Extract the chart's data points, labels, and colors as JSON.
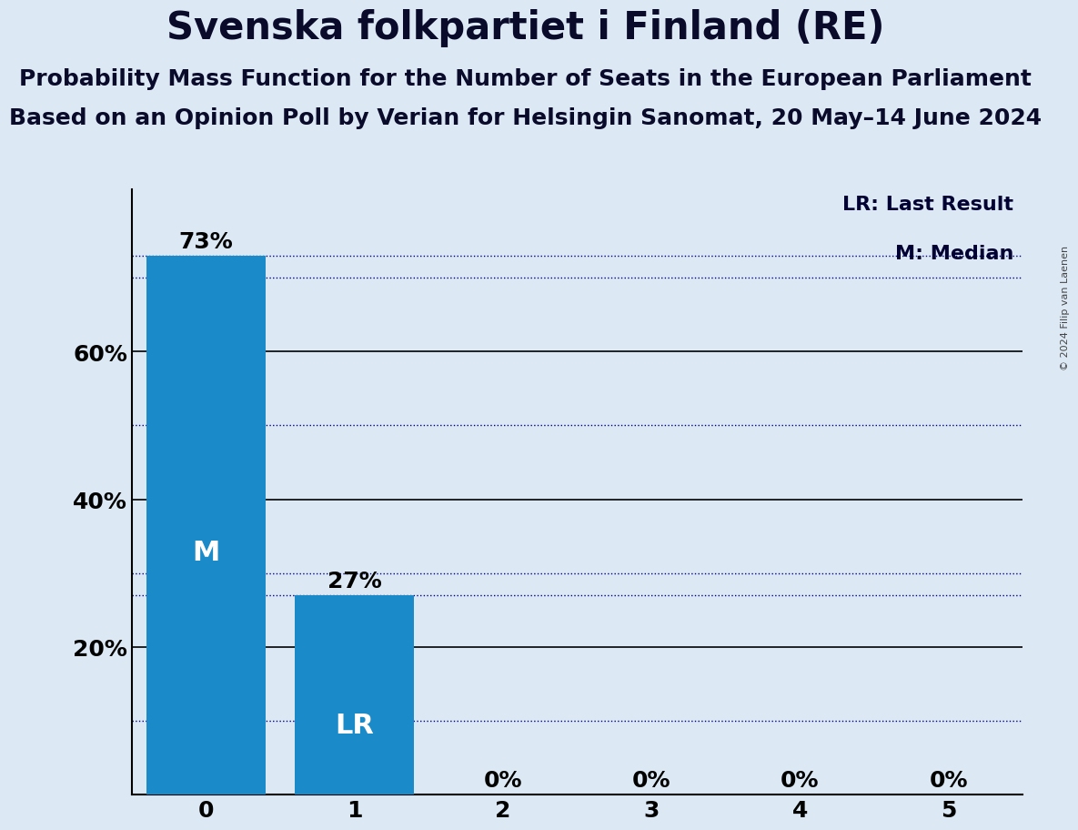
{
  "title": "Svenska folkpartiet i Finland (RE)",
  "subtitle1": "Probability Mass Function for the Number of Seats in the European Parliament",
  "subtitle2": "Based on an Opinion Poll by Verian for Helsingin Sanomat, 20 May–14 June 2024",
  "copyright": "© 2024 Filip van Laenen",
  "categories": [
    0,
    1,
    2,
    3,
    4,
    5
  ],
  "values": [
    0.73,
    0.27,
    0.0,
    0.0,
    0.0,
    0.0
  ],
  "bar_color": "#1a8ac8",
  "background_color": "#dce9f5",
  "median": 0,
  "last_result": 1,
  "median_label": "M",
  "last_result_label": "LR",
  "legend_lr": "LR: Last Result",
  "legend_m": "M: Median",
  "ylim": [
    0,
    0.82
  ],
  "solid_line_color": "#000000",
  "dotted_line_color": "#000080",
  "bar_label_color": "#ffffff",
  "above_bar_fontsize": 18,
  "inside_bar_fontsize": 22,
  "axis_tick_fontsize": 18,
  "title_fontsize": 30,
  "subtitle_fontsize": 18,
  "legend_fontsize": 16,
  "copyright_fontsize": 8,
  "text_color": "#0a0a2a",
  "legend_color": "#000033"
}
